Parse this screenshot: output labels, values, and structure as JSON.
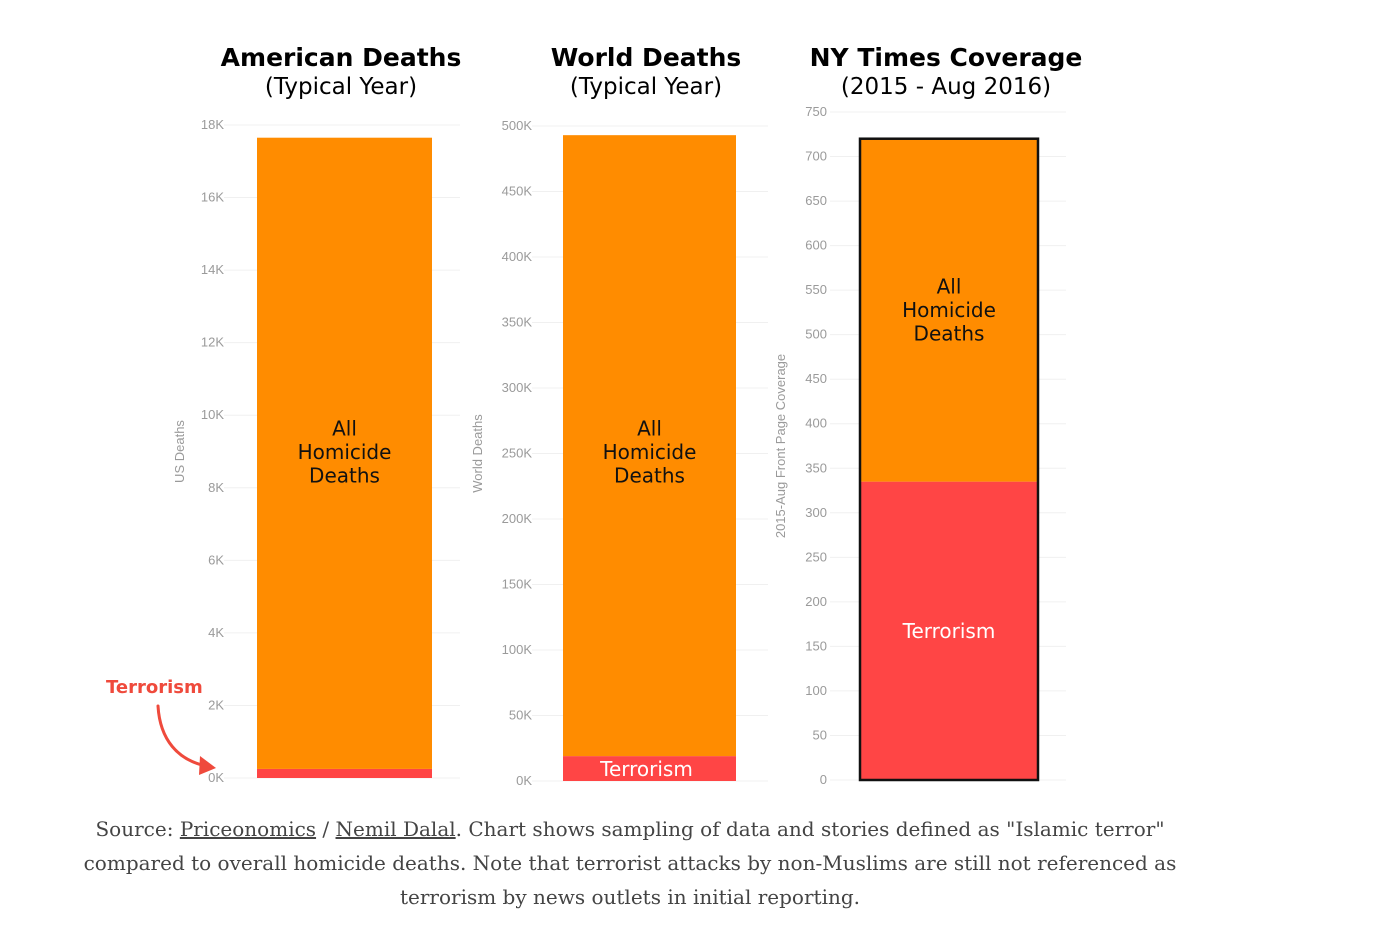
{
  "chart_data": [
    {
      "type": "bar",
      "stacked": true,
      "title": "American Deaths",
      "subtitle": "(Typical Year)",
      "ylabel": "US Deaths",
      "ylim": [
        0,
        18000
      ],
      "yticks": [
        "0K",
        "2K",
        "4K",
        "6K",
        "8K",
        "10K",
        "12K",
        "14K",
        "16K",
        "18K"
      ],
      "ytick_values": [
        0,
        2000,
        4000,
        6000,
        8000,
        10000,
        12000,
        14000,
        16000,
        18000
      ],
      "series": [
        {
          "name": "Terrorism",
          "value": 250,
          "color": "#ff4545"
        },
        {
          "name": "All Homicide Deaths",
          "value": 17400,
          "color": "#ff8c00"
        }
      ],
      "annotation": "Terrorism",
      "grid": true
    },
    {
      "type": "bar",
      "stacked": true,
      "title": "World Deaths",
      "subtitle": "(Typical Year)",
      "ylabel": "World Deaths",
      "ylim": [
        0,
        500000
      ],
      "yticks": [
        "0K",
        "50K",
        "100K",
        "150K",
        "200K",
        "250K",
        "300K",
        "350K",
        "400K",
        "450K",
        "500K"
      ],
      "ytick_values": [
        0,
        50000,
        100000,
        150000,
        200000,
        250000,
        300000,
        350000,
        400000,
        450000,
        500000
      ],
      "series": [
        {
          "name": "Terrorism",
          "value": 19000,
          "color": "#ff4545"
        },
        {
          "name": "All Homicide Deaths",
          "value": 474000,
          "color": "#ff8c00"
        }
      ],
      "grid": true
    },
    {
      "type": "bar",
      "stacked": true,
      "title": "NY Times Coverage",
      "subtitle": "(2015 - Aug 2016)",
      "ylabel": "2015-Aug Front Page Coverage",
      "ylim": [
        0,
        750
      ],
      "yticks": [
        "0",
        "50",
        "100",
        "150",
        "200",
        "250",
        "300",
        "350",
        "400",
        "450",
        "500",
        "550",
        "600",
        "650",
        "700",
        "750"
      ],
      "ytick_values": [
        0,
        50,
        100,
        150,
        200,
        250,
        300,
        350,
        400,
        450,
        500,
        550,
        600,
        650,
        700,
        750
      ],
      "series": [
        {
          "name": "Terrorism",
          "value": 335,
          "color": "#ff4545"
        },
        {
          "name": "All Homicide Deaths",
          "value": 385,
          "color": "#ff8c00"
        }
      ],
      "grid": true
    }
  ],
  "segment_labels": {
    "homicide": [
      "All",
      "Homicide",
      "Deaths"
    ],
    "terrorism": "Terrorism"
  },
  "caption": {
    "prefix": "Source: ",
    "link1": "Priceonomics",
    "sep": " / ",
    "link2": "Nemil Dalal",
    "text": ". Chart shows sampling of data and stories defined as \"Islamic terror\" compared to overall homicide deaths. Note that terrorist attacks by non-Muslims are still not referenced as terrorism by news outlets in initial reporting."
  },
  "colors": {
    "homicide": "#ff8c00",
    "terrorism": "#ff4545",
    "annotation": "#ef4a3c"
  }
}
